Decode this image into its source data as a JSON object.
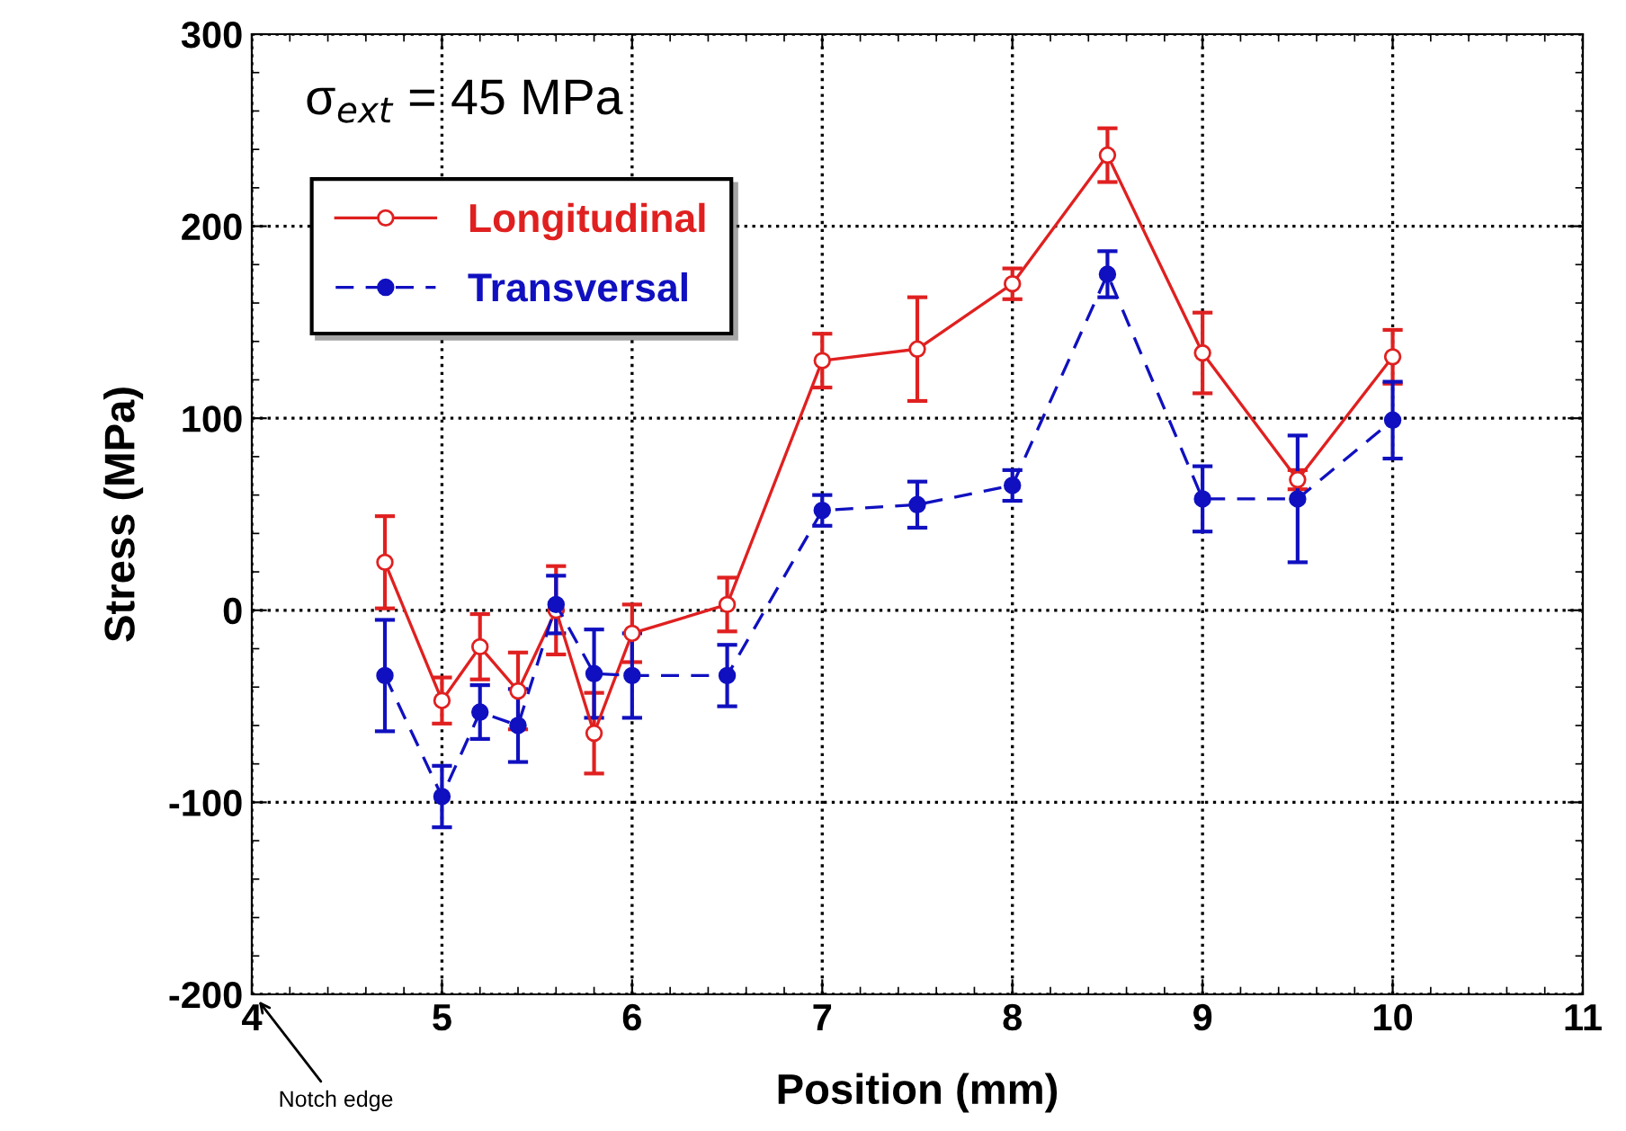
{
  "chart_data": {
    "type": "line",
    "xlabel": "Position (mm)",
    "ylabel": "Stress (MPa)",
    "annotations": [
      "σ$_{ext}$ = 45 MPa",
      "Notch edge"
    ],
    "xlim": [
      4,
      11
    ],
    "xticks": [
      4,
      5,
      6,
      7,
      8,
      9,
      10,
      11
    ],
    "ylim": [
      -200,
      300
    ],
    "yticks": [
      -200,
      -100,
      0,
      100,
      200,
      300
    ],
    "grid": true,
    "legend": "top left",
    "series": [
      {
        "name": "Longitudinal",
        "color": "#e02020",
        "marker": "circle",
        "line_style": "solid",
        "x": [
          4.7,
          5.0,
          5.2,
          5.4,
          5.6,
          5.8,
          6.0,
          6.5,
          7.0,
          7.5,
          8.0,
          8.5,
          9.0,
          9.5,
          10.0
        ],
        "values": [
          25,
          -47,
          -19,
          -42,
          0,
          -64,
          -12,
          3,
          130,
          136,
          170,
          237,
          134,
          68,
          132
        ],
        "errors": [
          24,
          12,
          17,
          20,
          23,
          21,
          15,
          14,
          14,
          27,
          8,
          14,
          21,
          5,
          14
        ]
      },
      {
        "name": "Transversal",
        "color": "#1010c0",
        "marker": "circle",
        "line_style": "dashed",
        "x": [
          4.7,
          5.0,
          5.2,
          5.4,
          5.6,
          5.8,
          6.0,
          6.5,
          7.0,
          7.5,
          8.0,
          8.5,
          9.0,
          9.5,
          10.0
        ],
        "values": [
          -34,
          -97,
          -53,
          -60,
          3,
          -33,
          -34,
          -34,
          52,
          55,
          65,
          175,
          58,
          58,
          99
        ],
        "errors": [
          29,
          16,
          14,
          19,
          15,
          23,
          22,
          16,
          8,
          12,
          8,
          12,
          17,
          33,
          20
        ]
      }
    ]
  }
}
